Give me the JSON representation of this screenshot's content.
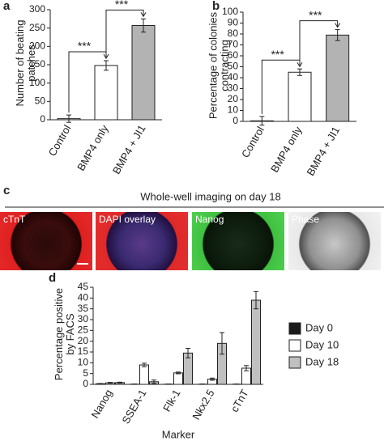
{
  "chart_data": [
    {
      "type": "bar",
      "panel": "a",
      "categories": [
        "Control",
        "BMP4 only",
        "BMP4 + JI1"
      ],
      "values": [
        3,
        148,
        257
      ],
      "errors": [
        10,
        13,
        18
      ],
      "colors": [
        "#ffffff",
        "#ffffff",
        "#b3b3b3"
      ],
      "ylabel": "Number of beating patches",
      "ylim": [
        0,
        300
      ],
      "yticks": [
        0,
        50,
        100,
        150,
        200,
        250,
        300
      ],
      "significance": [
        "***",
        "***"
      ]
    },
    {
      "type": "bar",
      "panel": "b",
      "categories": [
        "Control",
        "BMP4 only",
        "BMP4 + JI1"
      ],
      "values": [
        0.5,
        45,
        79
      ],
      "errors": [
        4,
        3,
        5
      ],
      "colors": [
        "#ffffff",
        "#ffffff",
        "#b3b3b3"
      ],
      "ylabel": "Percentage of colonies contracting",
      "ylim": [
        0,
        100
      ],
      "yticks": [
        0,
        10,
        20,
        30,
        40,
        50,
        60,
        70,
        80,
        90,
        100
      ],
      "significance": [
        "***",
        "***"
      ]
    },
    {
      "type": "image",
      "panel": "c",
      "title": "Whole-well imaging on day 18",
      "labels": [
        "cTnT",
        "DAPI  overlay",
        "Nanog",
        "Phase"
      ]
    },
    {
      "type": "grouped_bar",
      "panel": "d",
      "categories": [
        "Nanog",
        "SSEA-1",
        "Flk-1",
        "Nkx2.5",
        "cTnT"
      ],
      "series": [
        {
          "name": "Day 0",
          "color": "#1a1a1a",
          "values": [
            0.3,
            0.1,
            0.1,
            0.1,
            0.1
          ],
          "errors": [
            0.1,
            0.1,
            0.1,
            0.1,
            0.1
          ]
        },
        {
          "name": "Day 10",
          "color": "#ffffff",
          "values": [
            0.7,
            9,
            5.3,
            2.4,
            7.5
          ],
          "errors": [
            0.2,
            0.8,
            0.4,
            0.5,
            1.2
          ]
        },
        {
          "name": "Day 18",
          "color": "#c0c0c0",
          "values": [
            0.8,
            1.2,
            14.5,
            19,
            39
          ],
          "errors": [
            0.2,
            0.8,
            2.2,
            5,
            4
          ]
        }
      ],
      "ylabel": "Percentage positive by FACS",
      "xlabel": "Marker",
      "ylim": [
        0,
        45
      ],
      "yticks": [
        0,
        5,
        10,
        15,
        20,
        25,
        30,
        35,
        40,
        45
      ],
      "legend": "right"
    }
  ]
}
